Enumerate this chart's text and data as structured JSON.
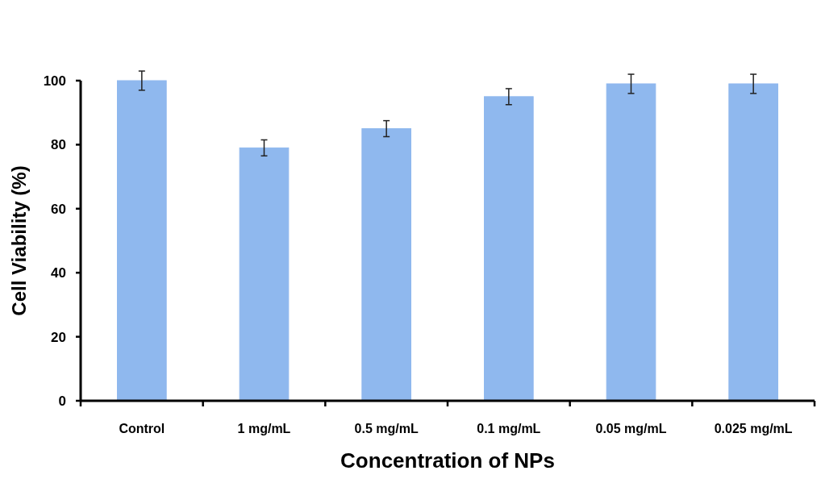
{
  "chart_data": {
    "type": "bar",
    "xlabel": "Concentration of NPs",
    "ylabel": "Cell Viability (%)",
    "categories": [
      "Control",
      "1 mg/mL",
      "0.5 mg/mL",
      "0.1 mg/mL",
      "0.05 mg/mL",
      "0.025 mg/mL"
    ],
    "values": [
      100,
      79,
      85,
      95,
      99,
      99
    ],
    "errors": [
      3,
      2.5,
      2.5,
      2.5,
      3,
      3
    ],
    "color": "#8fb8ee",
    "ylim": [
      0,
      100
    ],
    "yticks": [
      0,
      20,
      40,
      60,
      80,
      100
    ],
    "grid": false
  }
}
